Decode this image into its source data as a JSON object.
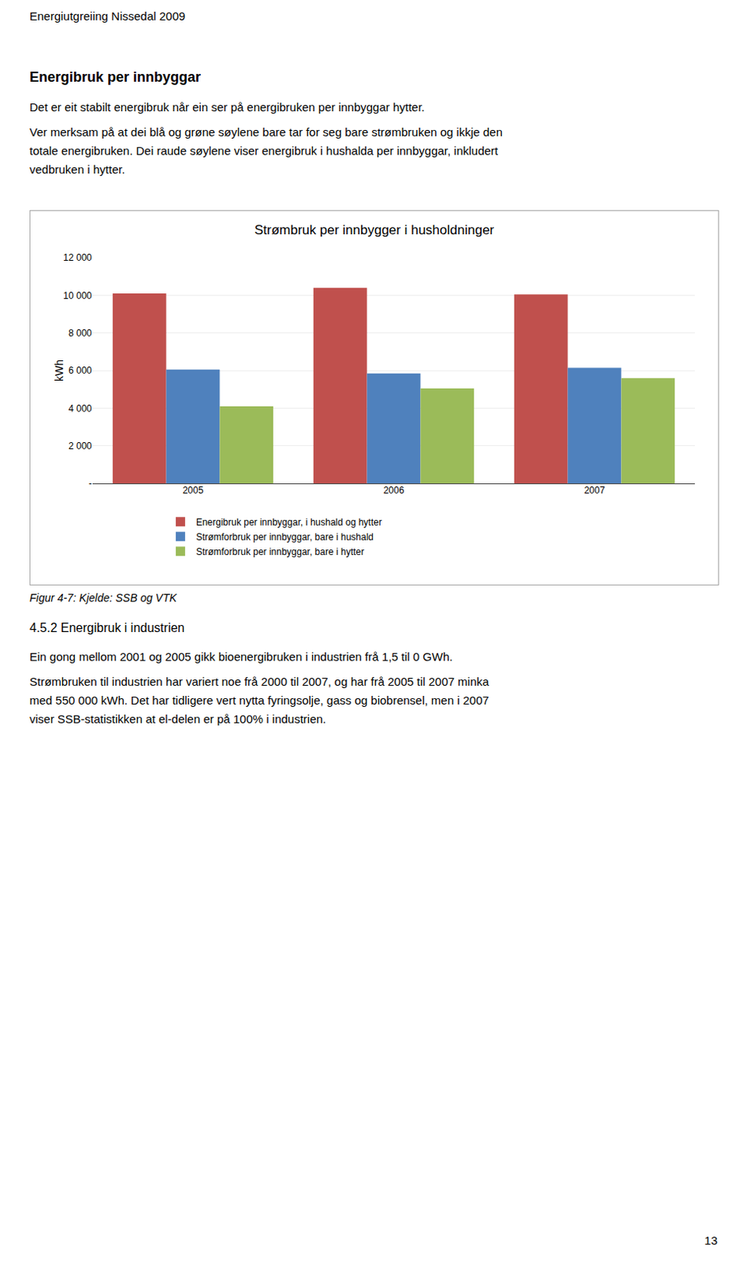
{
  "page_title": "Energiutgreiing Nissedal 2009",
  "section_title": "Energibruk per innbyggar",
  "paragraphs_before": [
    [
      "Det er eit stabilt energibruk når ein ser på energibruken per innbyggar hytter."
    ],
    [
      "Ver merksam på at dei blå og grøne søylene bare tar for seg bare strømbruken og ikkje den",
      "totale energibruken. Dei raude søylene viser energibruk i hushalda per innbyggar, inkludert",
      "vedbruken i hytter."
    ]
  ],
  "caption": "Figur 4-7: Kjelde: SSB og VTK",
  "section2_title": "4.5.2    Energibruk i industrien",
  "paragraphs_after": [
    [
      "Ein gong mellom 2001 og 2005 gikk bioenergibruken i industrien frå 1,5 til 0 GWh."
    ],
    [
      "Strømbruken til industrien har variert noe frå 2000 til 2007, og har frå 2005 til 2007 minka",
      "med 550 000 kWh. Det har tidligere vert nytta fyringsolje, gass og biobrensel, men i 2007",
      "viser SSB-statistikken at el-delen er på 100% i industrien."
    ]
  ],
  "page_number": "13",
  "chart_data": {
    "type": "bar",
    "title": "Strømbruk per innbygger i husholdninger",
    "ylabel": "kWh",
    "categories": [
      "2005",
      "2006",
      "2007"
    ],
    "series": [
      {
        "name": "Energibruk per innbyggar, i hushald og hytter",
        "color": "#C0504D",
        "values": [
          10100,
          10400,
          10050
        ]
      },
      {
        "name": "Strømforbruk per innbyggar, bare i hushald",
        "color": "#4F81BD",
        "values": [
          6050,
          5850,
          6150
        ]
      },
      {
        "name": "Strømforbruk per innbyggar, bare i hytter",
        "color": "#9BBB59",
        "values": [
          4100,
          5050,
          5600
        ]
      }
    ],
    "ylim": [
      0,
      12000
    ],
    "yticks": [
      {
        "value": 0,
        "label": "-"
      },
      {
        "value": 2000,
        "label": "2 000"
      },
      {
        "value": 4000,
        "label": "4 000"
      },
      {
        "value": 6000,
        "label": "6 000"
      },
      {
        "value": 8000,
        "label": "8 000"
      },
      {
        "value": 10000,
        "label": "10 000"
      },
      {
        "value": 12000,
        "label": "12 000"
      }
    ],
    "grid": true,
    "legend": "bottom"
  }
}
